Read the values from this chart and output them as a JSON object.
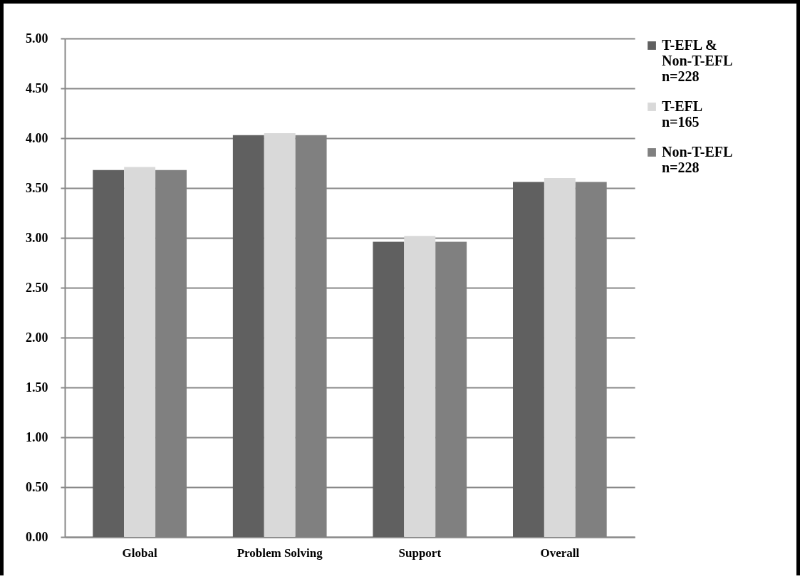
{
  "chart_data": {
    "type": "bar",
    "categories": [
      "Global",
      "Problem Solving",
      "Support",
      "Overall"
    ],
    "series": [
      {
        "name": "T-EFL & Non-T-EFL n=228",
        "color": "#606060",
        "values": [
          3.68,
          4.03,
          2.96,
          3.56
        ]
      },
      {
        "name": "T-EFL n=165",
        "color": "#d9d9d9",
        "values": [
          3.71,
          4.05,
          3.02,
          3.6
        ]
      },
      {
        "name": "Non-T-EFL n=228",
        "color": "#808080",
        "values": [
          3.68,
          4.03,
          2.96,
          3.56
        ]
      }
    ],
    "ylim": [
      0,
      5
    ],
    "yticks": [
      {
        "value": 0,
        "label": "0.00"
      },
      {
        "value": 0.5,
        "label": "0.50"
      },
      {
        "value": 1,
        "label": "1.00"
      },
      {
        "value": 1.5,
        "label": "1.50"
      },
      {
        "value": 2,
        "label": "2.00"
      },
      {
        "value": 2.5,
        "label": "2.50"
      },
      {
        "value": 3,
        "label": "3.00"
      },
      {
        "value": 3.5,
        "label": "3.50"
      },
      {
        "value": 4,
        "label": "4.00"
      },
      {
        "value": 4.5,
        "label": "4.50"
      },
      {
        "value": 5,
        "label": "5.00"
      }
    ],
    "grid": "y",
    "legend": "right"
  }
}
